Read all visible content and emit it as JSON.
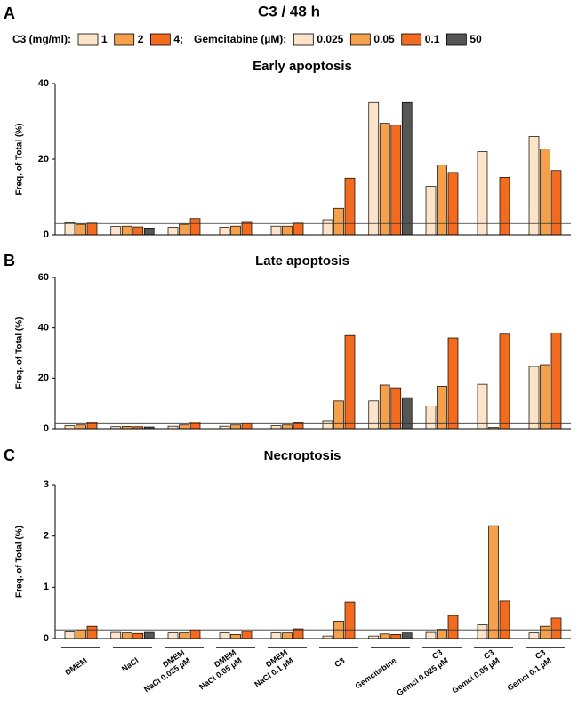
{
  "title": "C3 / 48 h",
  "legend": [
    {
      "title": "C3 (mg/ml):",
      "items": [
        {
          "label": "1",
          "color": "#fde4c8"
        },
        {
          "label": "2",
          "color": "#f5a04a"
        },
        {
          "label": "4;",
          "color": "#f26b1f"
        }
      ]
    },
    {
      "title": "Gemcitabine (µM):",
      "items": [
        {
          "label": "0.025",
          "color": "#fde4c8"
        },
        {
          "label": "0.05",
          "color": "#f5a04a"
        },
        {
          "label": "0.1",
          "color": "#f26b1f"
        },
        {
          "label": "50",
          "color": "#555555"
        }
      ]
    }
  ],
  "chart_data": [
    {
      "type": "bar",
      "panel": "A",
      "title": "Early apoptosis",
      "ylabel": "Freq. of Total (%)",
      "ylim": [
        0,
        40
      ],
      "yticks": [
        0,
        20,
        40
      ],
      "ref_line": 3,
      "series": [
        {
          "color": "#fde4c8",
          "values": [
            3.2,
            2.2,
            2.0,
            2.0,
            2.3,
            4.0,
            35,
            12.8,
            22,
            26
          ]
        },
        {
          "color": "#f5a04a",
          "values": [
            2.8,
            2.3,
            2.8,
            2.3,
            2.3,
            7.0,
            29.5,
            18.5,
            0,
            22.7
          ]
        },
        {
          "color": "#f26b1f",
          "values": [
            3.1,
            2.1,
            4.3,
            3.3,
            3.1,
            15,
            29,
            16.5,
            15.2,
            17
          ]
        },
        {
          "color": "#555555",
          "values": [
            null,
            1.8,
            null,
            null,
            null,
            null,
            35,
            null,
            null,
            null
          ]
        }
      ]
    },
    {
      "type": "bar",
      "panel": "B",
      "title": "Late apoptosis",
      "ylabel": "Freq. of Total (%)",
      "ylim": [
        0,
        60
      ],
      "yticks": [
        0,
        20,
        40,
        60
      ],
      "ref_line": 2,
      "series": [
        {
          "color": "#fde4c8",
          "values": [
            1.2,
            0.8,
            1.0,
            1.0,
            1.2,
            3.2,
            11,
            9,
            17.6,
            24.7
          ]
        },
        {
          "color": "#f5a04a",
          "values": [
            1.5,
            0.9,
            1.5,
            1.5,
            1.5,
            11,
            17.3,
            16.8,
            0.5,
            25.4
          ]
        },
        {
          "color": "#f26b1f",
          "values": [
            2.5,
            0.8,
            2.7,
            2.0,
            2.3,
            37,
            16.2,
            36,
            37.5,
            38
          ]
        },
        {
          "color": "#555555",
          "values": [
            null,
            0.7,
            null,
            null,
            null,
            null,
            12.3,
            null,
            null,
            null
          ]
        }
      ]
    },
    {
      "type": "bar",
      "panel": "C",
      "title": "Necroptosis",
      "ylabel": "Freq. of Total (%)",
      "ylim": [
        0,
        3
      ],
      "yticks": [
        0,
        1,
        2,
        3
      ],
      "ref_line": 0.17,
      "categories": [
        [
          "DMEM"
        ],
        [
          "NaCl"
        ],
        [
          "DMEM",
          "NaCl 0.025 µM"
        ],
        [
          "DMEM",
          "NaCl 0.05 µM"
        ],
        [
          "DMEM",
          "NaCl 0.1 µM"
        ],
        [
          "C3"
        ],
        [
          "Gemcitabine"
        ],
        [
          "C3",
          "Gemci 0.025 µM"
        ],
        [
          "C3",
          "Gemci 0.05 µM"
        ],
        [
          "C3",
          "Gemci 0.1 µM"
        ]
      ],
      "series": [
        {
          "color": "#fde4c8",
          "values": [
            0.13,
            0.12,
            0.11,
            0.11,
            0.11,
            0.05,
            0.05,
            0.12,
            0.27,
            0.11
          ]
        },
        {
          "color": "#f5a04a",
          "values": [
            0.17,
            0.11,
            0.11,
            0.08,
            0.11,
            0.34,
            0.09,
            0.18,
            2.2,
            0.24
          ]
        },
        {
          "color": "#f26b1f",
          "values": [
            0.24,
            0.1,
            0.17,
            0.14,
            0.19,
            0.71,
            0.08,
            0.45,
            0.73,
            0.4
          ]
        },
        {
          "color": "#555555",
          "values": [
            null,
            0.12,
            null,
            null,
            null,
            null,
            0.11,
            null,
            null,
            null
          ]
        }
      ]
    }
  ]
}
